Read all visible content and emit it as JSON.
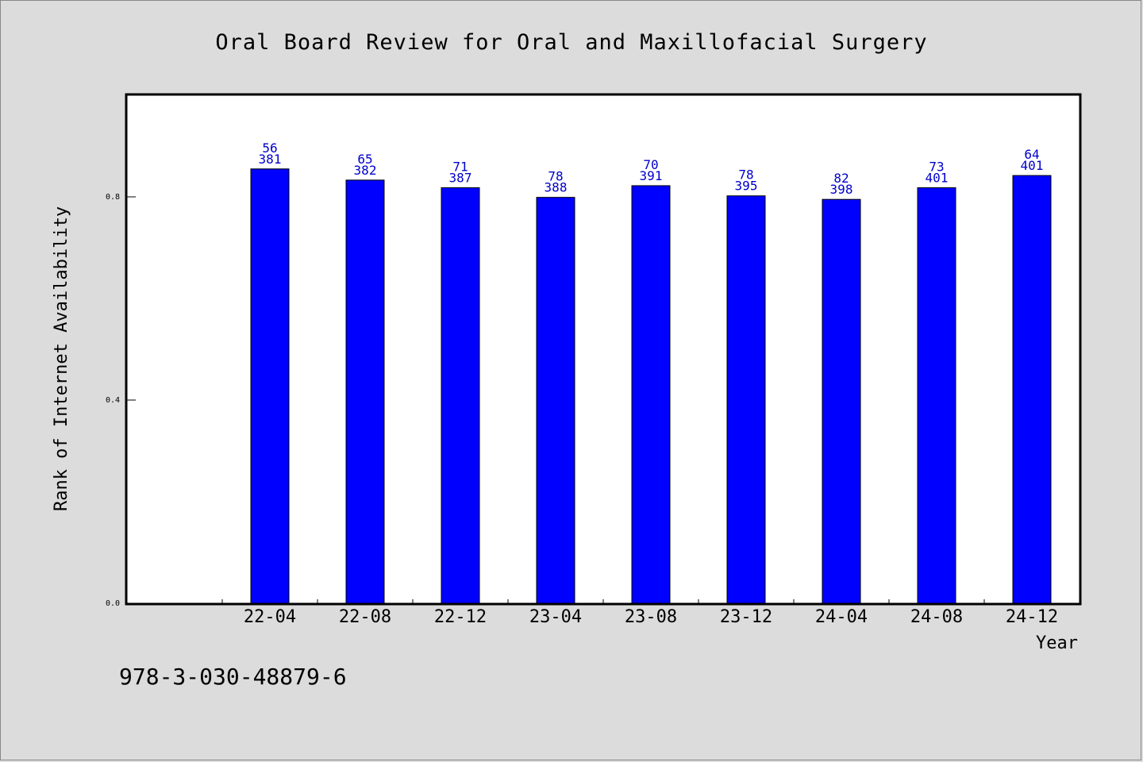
{
  "chart_data": {
    "type": "bar",
    "title": "Oral Board Review for Oral and Maxillofacial Surgery",
    "xlabel": "Year",
    "ylabel": "Rank of Internet Availability",
    "categories": [
      "22-04",
      "22-08",
      "22-12",
      "23-04",
      "23-08",
      "23-12",
      "24-04",
      "24-08",
      "24-12"
    ],
    "values": [
      0.855,
      0.833,
      0.818,
      0.799,
      0.822,
      0.802,
      0.795,
      0.818,
      0.842
    ],
    "labels_top": [
      "56",
      "65",
      "71",
      "78",
      "70",
      "78",
      "82",
      "73",
      "64"
    ],
    "labels_bottom": [
      "381",
      "382",
      "387",
      "388",
      "391",
      "395",
      "398",
      "401",
      "401"
    ],
    "yticks": [
      "0.0",
      "0.4",
      "0.8"
    ],
    "ytick_values": [
      0.0,
      0.4,
      0.8
    ],
    "ylim": [
      0,
      1.0
    ],
    "bar_color": "#0000ff",
    "label_color": "#0000cc",
    "plot_background": "#ffffff",
    "page_background": "#dcdcdc",
    "grid": false
  },
  "footer": {
    "isbn": "978-3-030-48879-6"
  }
}
